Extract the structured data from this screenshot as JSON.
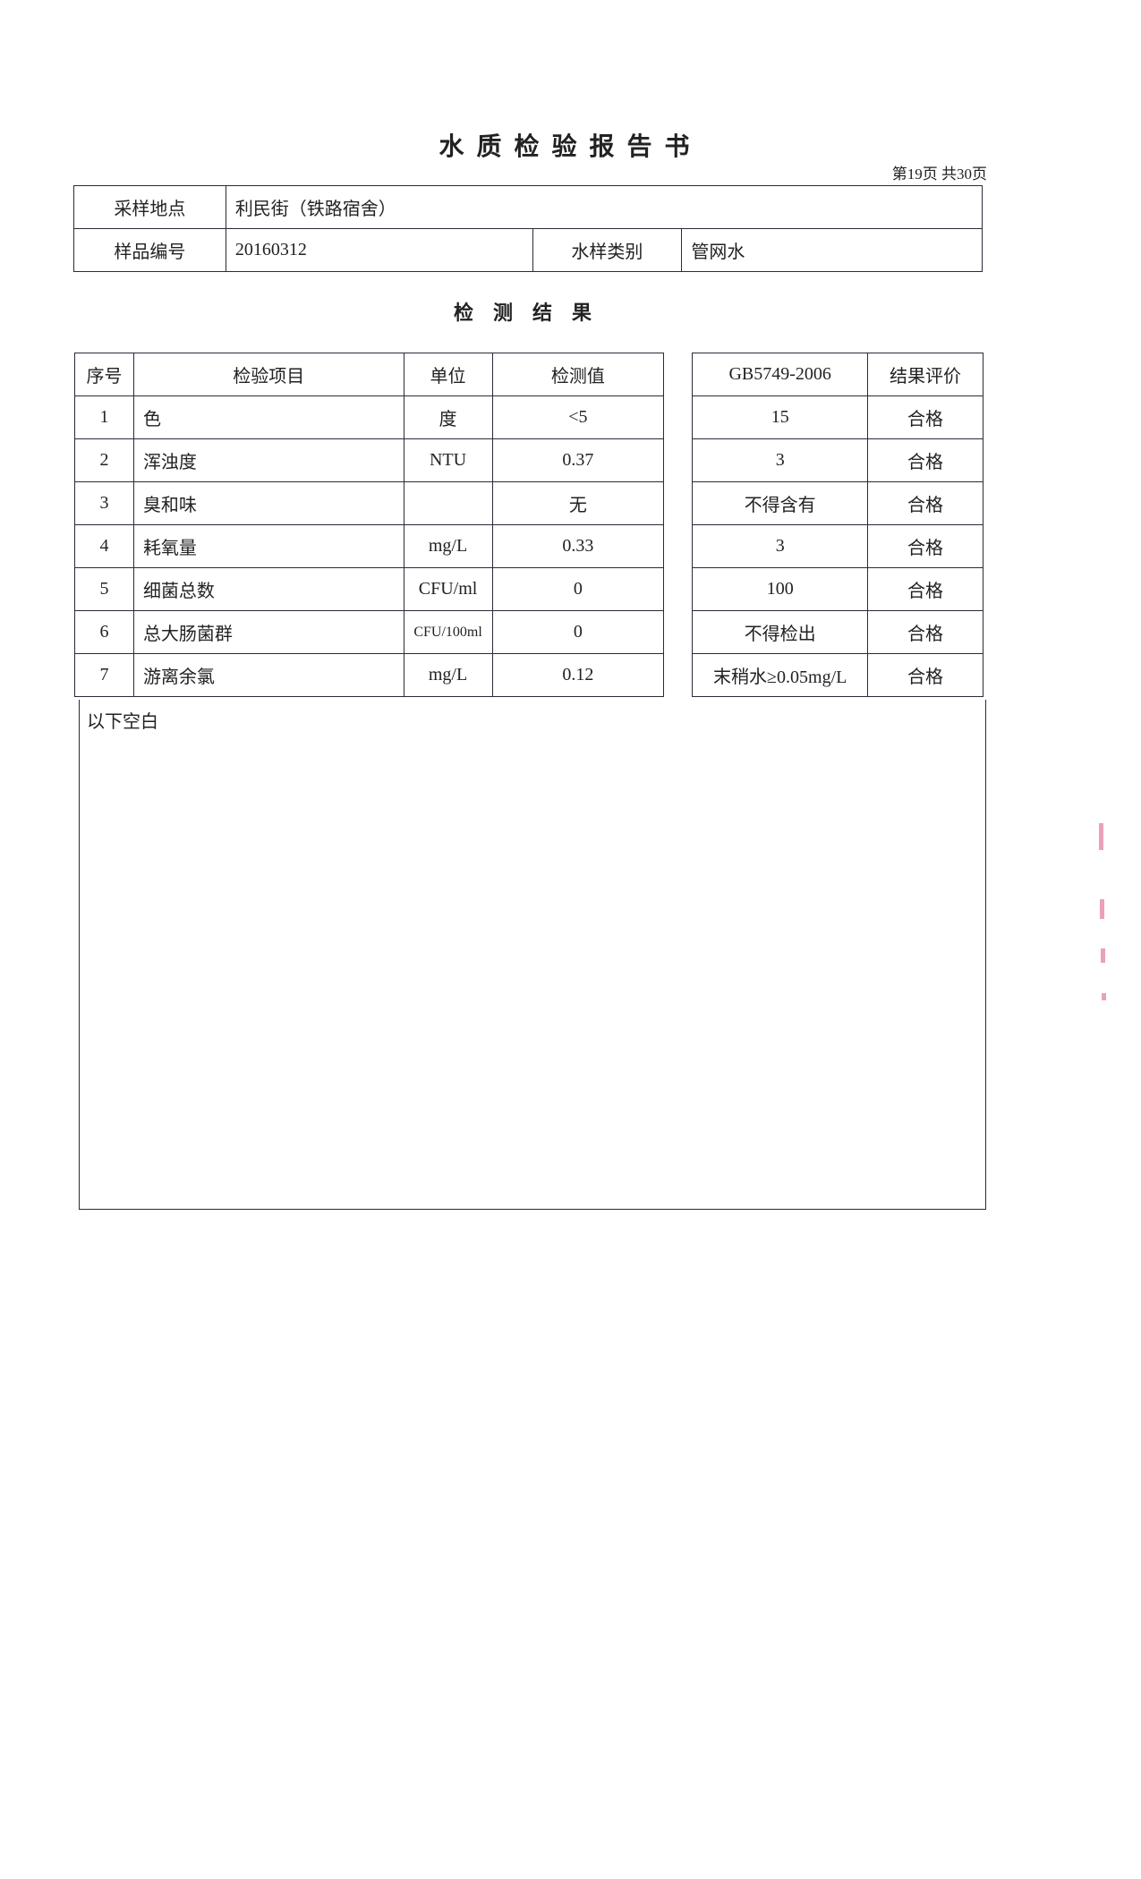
{
  "title": "水质检验报告书",
  "page_info": "第19页  共30页",
  "header": {
    "location_label": "采样地点",
    "location_value": "利民街（铁路宿舍）",
    "sample_no_label": "样品编号",
    "sample_no_value": "20160312",
    "water_type_label": "水样类别",
    "water_type_value": "管网水"
  },
  "section_title": "检测结果",
  "results": {
    "columns": [
      "序号",
      "检验项目",
      "单位",
      "检测值",
      "GB5749-2006",
      "结果评价"
    ],
    "rows": [
      [
        "1",
        "色",
        "度",
        "<5",
        "15",
        "合格"
      ],
      [
        "2",
        "浑浊度",
        "NTU",
        "0.37",
        "3",
        "合格"
      ],
      [
        "3",
        "臭和味",
        "",
        "无",
        "不得含有",
        "合格"
      ],
      [
        "4",
        "耗氧量",
        "mg/L",
        "0.33",
        "3",
        "合格"
      ],
      [
        "5",
        "细菌总数",
        "CFU/ml",
        "0",
        "100",
        "合格"
      ],
      [
        "6",
        "总大肠菌群",
        "CFU/100ml",
        "0",
        "不得检出",
        "合格"
      ],
      [
        "7",
        "游离余氯",
        "mg/L",
        "0.12",
        "末稍水≥0.05mg/L",
        "合格"
      ]
    ],
    "remark": "以下空白"
  },
  "colors": {
    "ink": "#222222",
    "stamp_mark": "#e0608a"
  }
}
